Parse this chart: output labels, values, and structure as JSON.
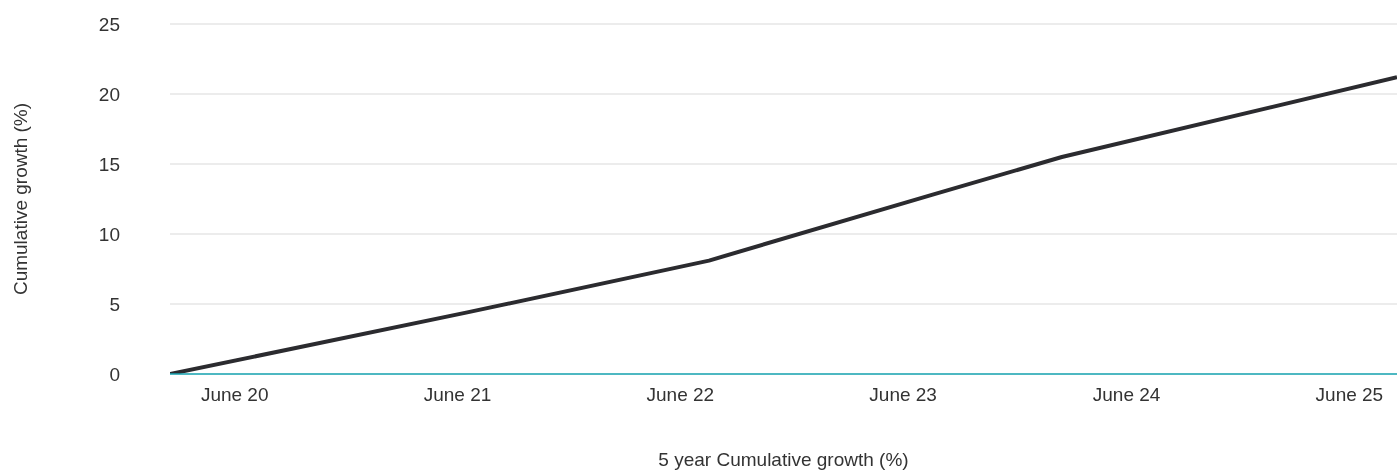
{
  "chart_data": {
    "type": "line",
    "xlabel": "5 year Cumulative growth (%)",
    "ylabel": "Cumulative growth (%)",
    "x": [
      "2020-03",
      "2021-07",
      "2022-08",
      "2023-08",
      "2024-03",
      "2025-09"
    ],
    "series": [
      {
        "color": "#2b2b2f",
        "values": [
          0,
          4.4,
          8.1,
          12.8,
          15.5,
          21.2
        ]
      }
    ],
    "xlim": [
      "2020-03",
      "2025-09"
    ],
    "xticks": [
      {
        "value": "2020-06-15",
        "label": "June 20"
      },
      {
        "value": "2021-06-15",
        "label": "June 21"
      },
      {
        "value": "2022-06-15",
        "label": "June 22"
      },
      {
        "value": "2023-06-15",
        "label": "June 23"
      },
      {
        "value": "2024-06-15",
        "label": "June 24"
      },
      {
        "value": "2025-06-15",
        "label": "June 25"
      }
    ],
    "ylim": [
      0,
      25
    ],
    "yticks": [
      0,
      5,
      10,
      15,
      20,
      25
    ],
    "grid": "y",
    "legend": false,
    "marker": "none",
    "line_style": "solid"
  }
}
